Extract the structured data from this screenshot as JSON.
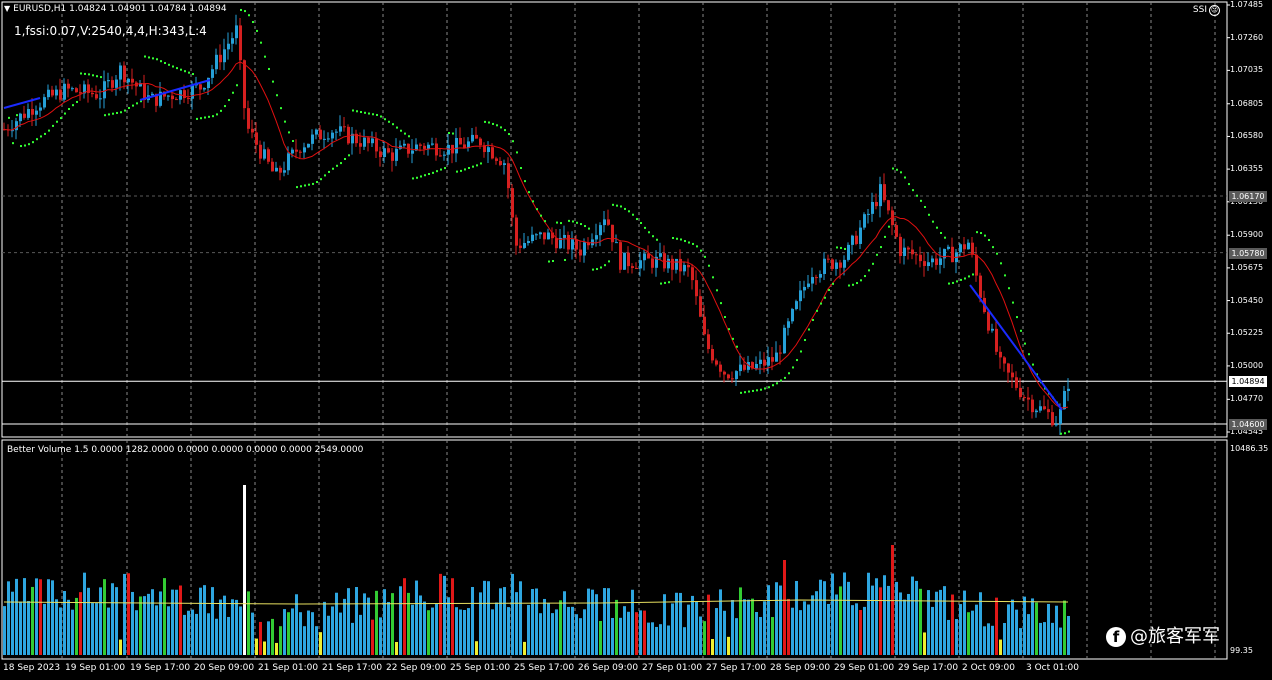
{
  "header": {
    "symbol_info": "EURUSD,H1  1.04824 1.04901 1.04784 1.04894",
    "indicator_info": "1,fssi:0.07,V:2540,4,4,H:343,L:4",
    "ssi_label": "SSI"
  },
  "volume_panel": {
    "label": "Better Volume 1.5 0.0000 1282.0000 0.0000 0.0000 0.0000 0.0000 2549.0000",
    "axis_top": "10486.35",
    "axis_bottom": "99.35"
  },
  "price_axis": {
    "labels": [
      "1.07485",
      "1.07260",
      "1.07035",
      "1.06805",
      "1.06580",
      "1.06355",
      "1.06130",
      "1.05900",
      "1.05675",
      "1.05450",
      "1.05225",
      "1.05000",
      "1.04770",
      "1.04545"
    ],
    "range": [
      1.04545,
      1.07485
    ]
  },
  "levels": [
    {
      "label": "1.06170",
      "value": 1.0617,
      "style": "dashed",
      "color": "#5a5a5a"
    },
    {
      "label": "1.05780",
      "value": 1.0578,
      "style": "dashed",
      "color": "#5a5a5a"
    },
    {
      "label": "1.04894",
      "value": 1.04894,
      "style": "solid",
      "color": "#ffffff",
      "current": true
    },
    {
      "label": "1.04600",
      "value": 1.046,
      "style": "solid",
      "color": "#ffffff"
    }
  ],
  "time_axis": {
    "labels": [
      "18 Sep 2023",
      "19 Sep 01:00",
      "19 Sep 17:00",
      "20 Sep 09:00",
      "21 Sep 01:00",
      "21 Sep 17:00",
      "22 Sep 09:00",
      "25 Sep 01:00",
      "25 Sep 17:00",
      "26 Sep 09:00",
      "27 Sep 01:00",
      "27 Sep 17:00",
      "28 Sep 09:00",
      "29 Sep 01:00",
      "29 Sep 17:00",
      "2 Oct 09:00",
      "3 Oct 01:00"
    ]
  },
  "colors": {
    "bull": "#26a0d8",
    "bear": "#d62020",
    "ma": "#e01010",
    "sar": "#33ff33",
    "blue_line": "#1a2bff",
    "vol_blue": "#2ea6e0",
    "vol_red": "#e01818",
    "vol_white": "#ffffff",
    "vol_green": "#33cc33",
    "vol_yellow": "#f0f030",
    "vol_avg": "#e8e060",
    "grid": "#888888"
  },
  "watermark": {
    "icon": "facebook-icon",
    "text": "@旅客军军"
  }
}
